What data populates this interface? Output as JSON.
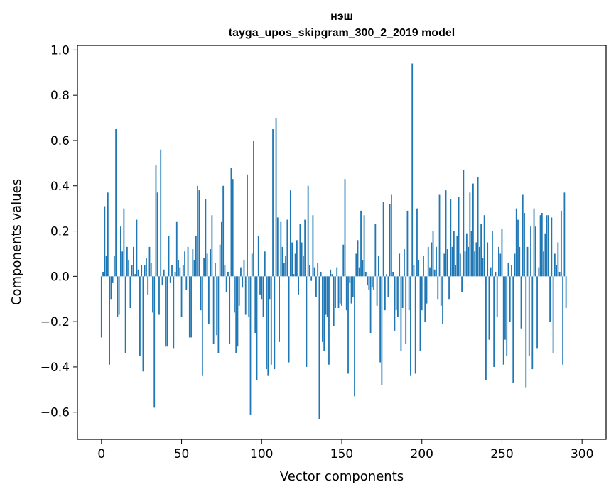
{
  "chart_data": {
    "type": "bar",
    "title": "нэш",
    "subtitle": "tayga_upos_skipgram_300_2_2019 model",
    "xlabel": "Vector components",
    "ylabel": "Components values",
    "xlim": [
      -15,
      315
    ],
    "ylim": [
      -0.72,
      1.02
    ],
    "xticks": [
      0,
      50,
      100,
      150,
      200,
      250,
      300
    ],
    "yticks": [
      -0.6,
      -0.4,
      -0.2,
      0.0,
      0.2,
      0.4,
      0.6,
      0.8,
      1.0
    ],
    "ytick_labels": [
      "−0.6",
      "−0.4",
      "−0.2",
      "0.0",
      "0.2",
      "0.4",
      "0.6",
      "0.8",
      "1.0"
    ],
    "bar_color": "#1f77b4",
    "values": [
      -0.27,
      0.02,
      0.31,
      0.09,
      0.37,
      -0.39,
      -0.1,
      -0.03,
      0.09,
      0.65,
      -0.18,
      -0.17,
      0.22,
      0.11,
      0.3,
      -0.34,
      0.13,
      0.07,
      -0.14,
      0.05,
      0.13,
      0.01,
      0.25,
      0.03,
      -0.35,
      0.05,
      -0.42,
      0.05,
      0.08,
      -0.08,
      0.13,
      0.06,
      -0.16,
      -0.58,
      0.49,
      0.37,
      -0.17,
      0.56,
      -0.04,
      0.03,
      -0.31,
      -0.31,
      0.18,
      -0.03,
      0.05,
      -0.32,
      0.02,
      0.24,
      0.07,
      0.04,
      -0.18,
      0.05,
      0.11,
      -0.06,
      0.13,
      -0.27,
      -0.27,
      0.12,
      0.07,
      0.18,
      0.4,
      0.38,
      -0.15,
      -0.44,
      0.08,
      0.34,
      0.1,
      -0.21,
      0.12,
      0.27,
      -0.3,
      0.06,
      -0.26,
      -0.34,
      0.14,
      0.24,
      0.4,
      0.05,
      -0.07,
      0.02,
      -0.3,
      0.48,
      0.43,
      -0.16,
      -0.34,
      -0.31,
      -0.13,
      0.04,
      -0.05,
      0.07,
      -0.17,
      0.45,
      -0.18,
      -0.61,
      0.1,
      0.6,
      -0.25,
      -0.46,
      0.18,
      -0.08,
      -0.1,
      -0.18,
      0.11,
      -0.41,
      -0.44,
      -0.1,
      -0.39,
      0.65,
      -0.41,
      0.7,
      0.26,
      -0.29,
      0.24,
      0.13,
      0.06,
      0.09,
      0.25,
      -0.38,
      0.38,
      0.15,
      0.01,
      0.1,
      0.16,
      -0.08,
      0.23,
      0.15,
      0.09,
      0.25,
      -0.4,
      0.4,
      0.05,
      -0.02,
      0.27,
      0.04,
      -0.09,
      0.06,
      -0.63,
      0.02,
      -0.29,
      -0.33,
      -0.17,
      -0.18,
      -0.39,
      0.03,
      0.01,
      -0.22,
      -0.14,
      0.04,
      -0.14,
      -0.12,
      -0.13,
      0.14,
      0.43,
      -0.15,
      -0.43,
      -0.03,
      -0.12,
      -0.09,
      -0.53,
      0.1,
      0.16,
      0.04,
      0.29,
      0.07,
      0.27,
      0.02,
      -0.04,
      -0.06,
      -0.25,
      -0.05,
      -0.06,
      0.23,
      -0.13,
      0.09,
      -0.38,
      -0.48,
      0.33,
      -0.15,
      0.01,
      -0.09,
      0.32,
      0.36,
      0.02,
      -0.24,
      -0.15,
      -0.18,
      0.1,
      -0.33,
      -0.14,
      0.12,
      -0.3,
      0.29,
      -0.15,
      -0.44,
      0.94,
      0.05,
      -0.43,
      0.3,
      0.07,
      -0.33,
      -0.15,
      0.09,
      -0.2,
      -0.12,
      0.13,
      0.04,
      0.15,
      0.2,
      0.03,
      0.13,
      -0.1,
      0.36,
      -0.13,
      -0.21,
      0.1,
      0.38,
      0.12,
      -0.1,
      0.34,
      0.13,
      0.2,
      0.05,
      0.18,
      0.35,
      0.1,
      -0.07,
      0.47,
      0.11,
      0.19,
      0.13,
      0.37,
      0.2,
      0.41,
      0.11,
      0.15,
      0.44,
      0.13,
      0.23,
      0.08,
      0.27,
      -0.46,
      0.15,
      -0.28,
      0.04,
      0.2,
      -0.4,
      0.02,
      -0.18,
      0.13,
      0.1,
      0.21,
      -0.39,
      -0.28,
      -0.35,
      0.06,
      -0.2,
      0.05,
      -0.47,
      0.1,
      0.3,
      0.25,
      0.13,
      -0.23,
      0.36,
      0.28,
      -0.49,
      0.13,
      -0.35,
      0.22,
      -0.41,
      0.3,
      0.22,
      -0.32,
      0.04,
      0.27,
      0.28,
      0.11,
      0.19,
      0.27,
      0.27,
      -0.2,
      0.26,
      -0.34,
      0.1,
      0.05,
      0.15,
      0.02,
      0.29,
      -0.39,
      0.37,
      -0.14
    ]
  }
}
